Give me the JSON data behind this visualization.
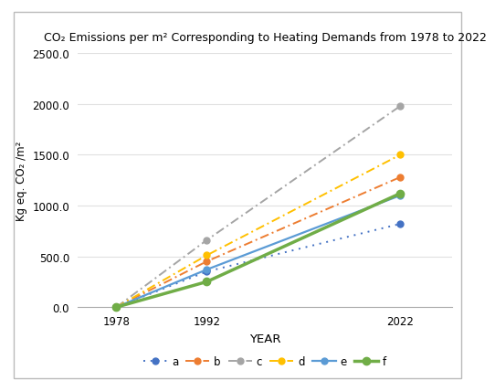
{
  "title": "CO₂ Emissions per m² Corresponding to Heating Demands from 1978 to 2022",
  "xlabel": "YEAR",
  "ylabel": "Kg eq. CO₂ /m²",
  "years": [
    1978,
    1992,
    2022
  ],
  "series": {
    "a": {
      "values": [
        0,
        350,
        820
      ]
    },
    "b": {
      "values": [
        0,
        450,
        1280
      ]
    },
    "c": {
      "values": [
        0,
        660,
        1980
      ]
    },
    "d": {
      "values": [
        0,
        510,
        1500
      ]
    },
    "e": {
      "values": [
        0,
        370,
        1100
      ]
    },
    "f": {
      "values": [
        0,
        250,
        1120
      ]
    }
  },
  "line_styles": {
    "a": {
      "color": "#4472C4",
      "ls_type": "dotted_fine",
      "lw": 1.4,
      "ms": 5
    },
    "b": {
      "color": "#ED7D31",
      "ls_type": "dashdot",
      "lw": 1.4,
      "ms": 5
    },
    "c": {
      "color": "#A5A5A5",
      "ls_type": "dashdot_fine",
      "lw": 1.4,
      "ms": 5
    },
    "d": {
      "color": "#FFC000",
      "ls_type": "dashdot",
      "lw": 1.4,
      "ms": 5
    },
    "e": {
      "color": "#5B9BD5",
      "ls_type": "solid",
      "lw": 1.6,
      "ms": 5
    },
    "f": {
      "color": "#70AD47",
      "ls_type": "solid_thick",
      "lw": 2.5,
      "ms": 6
    }
  },
  "ylim": [
    0,
    2500
  ],
  "yticks": [
    0.0,
    500.0,
    1000.0,
    1500.0,
    2000.0,
    2500.0
  ],
  "ytick_labels": [
    "0.0",
    "500.0",
    "1000.0",
    "1500.0",
    "2000.0",
    "2500.0"
  ],
  "background_color": "#FFFFFF",
  "grid_color": "#E0E0E0",
  "border_color": "#D0D0D0"
}
